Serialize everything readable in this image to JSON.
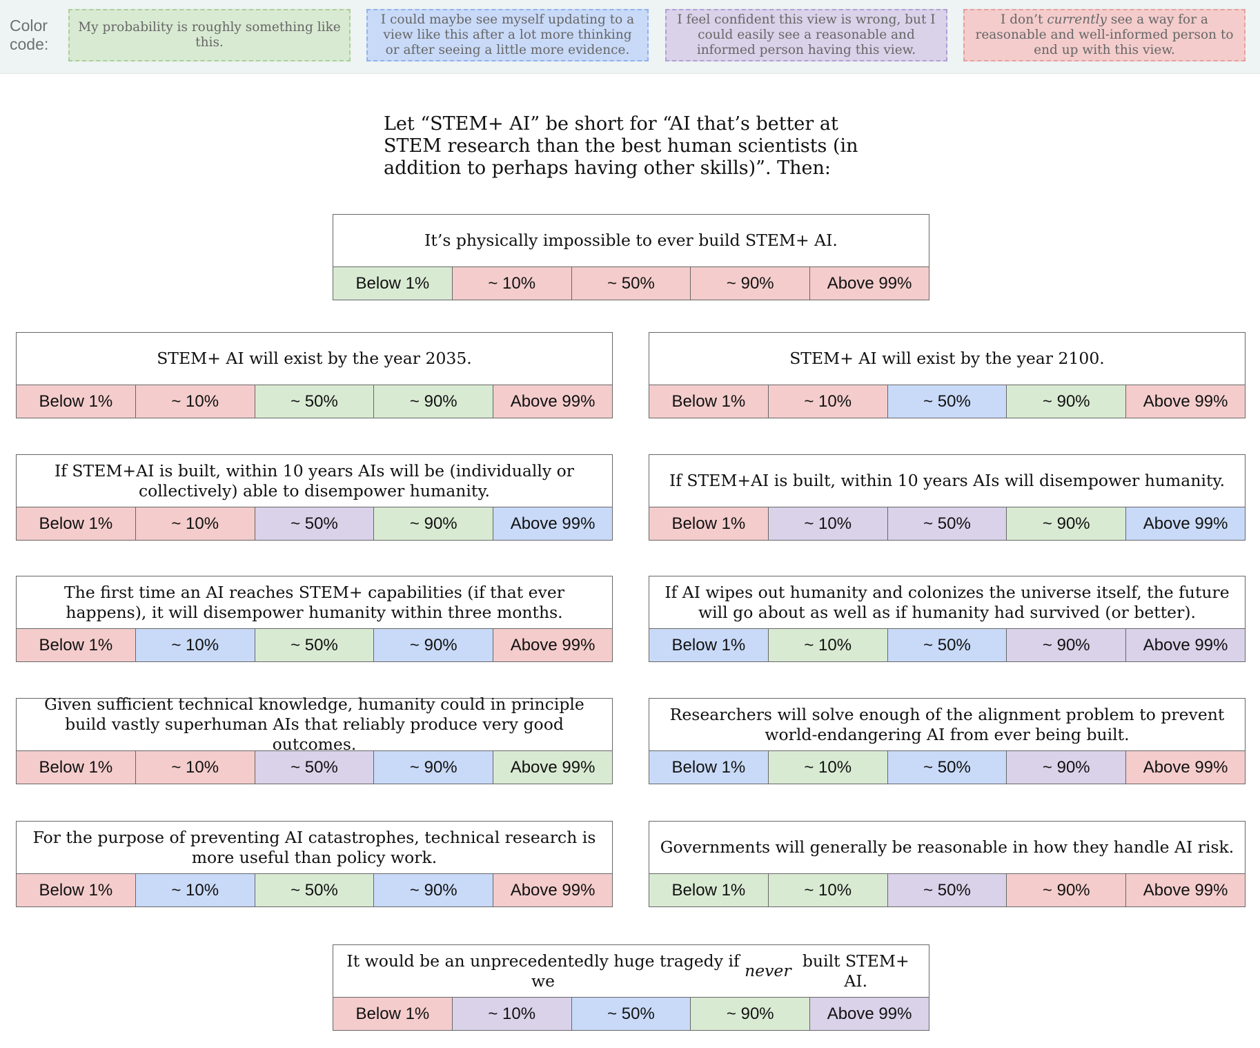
{
  "legend": {
    "title": "Color code:",
    "items": [
      {
        "color": "green",
        "fill": "#d9ead3",
        "border": "#a9cf9a",
        "text": "My probability is roughly something like this."
      },
      {
        "color": "blue",
        "fill": "#c9daf8",
        "border": "#8fb1ee",
        "text": "I could maybe see myself updating to a view like this after a lot more thinking or after seeing a little more evidence."
      },
      {
        "color": "purple",
        "fill": "#d9d2e9",
        "border": "#ada0d4",
        "text_before": "I feel confident this view is wrong, but I could easily see a reasonable and informed person having this view.",
        "text": "I feel confident this view is wrong, but I could easily see a reasonable and informed person having this view."
      },
      {
        "color": "red",
        "fill": "#f4cccc",
        "border": "#e3a0a0",
        "text_before": "I don’t ",
        "text_em": "currently",
        "text_after": " see a way for a reasonable and well-informed person to end up with this view."
      }
    ]
  },
  "intro": "Let “STEM+ AI” be short for “AI that’s better at STEM research than the best human scientists (in addition to perhaps having other skills)”. Then:",
  "option_labels": [
    "Below 1%",
    "~ 10%",
    "~ 50%",
    "~ 90%",
    "Above 99%"
  ],
  "questions": [
    {
      "id": "q1",
      "text": "It’s physically impossible to ever build STEM+ AI.",
      "colors": [
        "green",
        "red",
        "red",
        "red",
        "red"
      ]
    },
    {
      "id": "q2",
      "text": "STEM+ AI will exist by the year 2035.",
      "colors": [
        "red",
        "red",
        "green",
        "green",
        "red"
      ]
    },
    {
      "id": "q3",
      "text": "STEM+ AI will exist by the year 2100.",
      "colors": [
        "red",
        "red",
        "blue",
        "green",
        "red"
      ]
    },
    {
      "id": "q4",
      "text": "If STEM+AI is built, within 10 years AIs will be (individually or collectively) able to disempower humanity.",
      "colors": [
        "red",
        "red",
        "purple",
        "green",
        "blue"
      ]
    },
    {
      "id": "q5",
      "text": "If STEM+AI is built, within 10 years AIs will disempower humanity.",
      "colors": [
        "red",
        "purple",
        "purple",
        "green",
        "blue"
      ]
    },
    {
      "id": "q6",
      "text": "The first time an AI reaches STEM+ capabilities (if that ever happens), it will disempower humanity within three months.",
      "colors": [
        "red",
        "blue",
        "green",
        "blue",
        "red"
      ]
    },
    {
      "id": "q7",
      "text": "If AI wipes out humanity and colonizes the universe itself, the future will go about as well as if humanity had survived (or better).",
      "colors": [
        "blue",
        "green",
        "blue",
        "purple",
        "purple"
      ]
    },
    {
      "id": "q8",
      "text": "Given sufficient technical knowledge, humanity could in principle build vastly superhuman AIs that reliably produce very good outcomes.",
      "colors": [
        "red",
        "red",
        "purple",
        "blue",
        "green"
      ]
    },
    {
      "id": "q9",
      "text": "Researchers will solve enough of the alignment problem to prevent world-endangering AI from ever being built.",
      "colors": [
        "blue",
        "green",
        "blue",
        "purple",
        "red"
      ]
    },
    {
      "id": "q10",
      "text": "For the purpose of preventing AI catastrophes, technical research is more useful than policy work.",
      "colors": [
        "red",
        "blue",
        "green",
        "blue",
        "red"
      ]
    },
    {
      "id": "q11",
      "text": "Governments will generally be reasonable in how they handle AI risk.",
      "colors": [
        "green",
        "green",
        "purple",
        "red",
        "red"
      ]
    },
    {
      "id": "q12",
      "text_before": "It would be an unprecedentedly huge tragedy if we ",
      "text_em": "never",
      "text_after": " built STEM+ AI.",
      "colors": [
        "red",
        "purple",
        "blue",
        "green",
        "purple"
      ]
    }
  ]
}
